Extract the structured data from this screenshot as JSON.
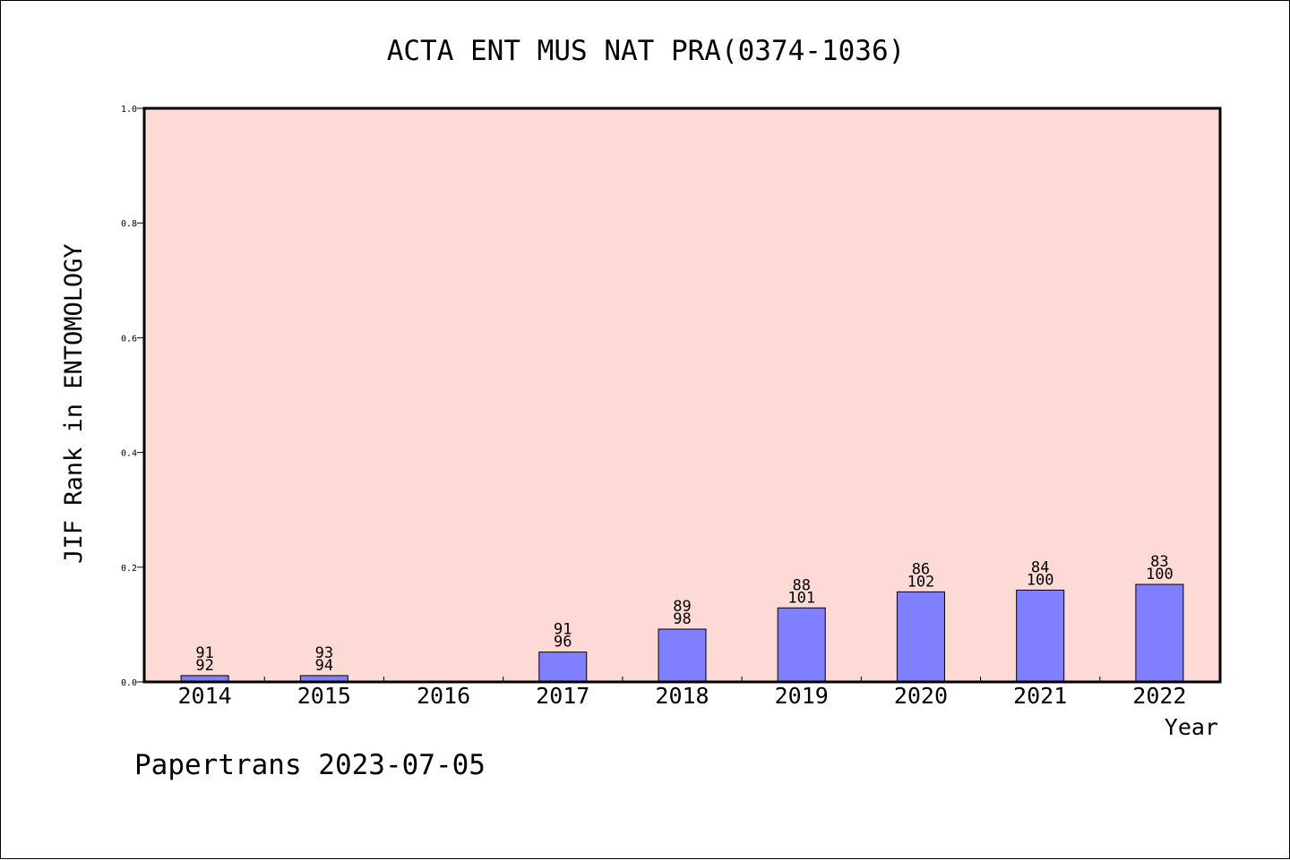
{
  "colors": {
    "plot_background": "#fddad6",
    "bar_fill": "#8080ff",
    "bar_stroke": "#000000",
    "axis": "#000000"
  },
  "footer": {
    "credit": "Papertrans 2023-07-05"
  },
  "chart_data": {
    "type": "bar",
    "title": "ACTA ENT MUS NAT PRA(0374-1036)",
    "xlabel": "Year",
    "ylabel": "JIF Rank in ENTOMOLOGY",
    "ylim": [
      0,
      1.0
    ],
    "yticks": [
      "0.0",
      "0.2",
      "0.4",
      "0.6",
      "0.8",
      "1.0"
    ],
    "grid": false,
    "categories": [
      "2014",
      "2015",
      "2016",
      "2017",
      "2018",
      "2019",
      "2020",
      "2021",
      "2022"
    ],
    "values": [
      0.011,
      0.011,
      null,
      0.052,
      0.092,
      0.129,
      0.157,
      0.16,
      0.17
    ],
    "rank": [
      "91",
      "93",
      "",
      "91",
      "89",
      "88",
      "86",
      "84",
      "83"
    ],
    "total": [
      "92",
      "94",
      "",
      "96",
      "98",
      "101",
      "102",
      "100",
      "100"
    ]
  }
}
